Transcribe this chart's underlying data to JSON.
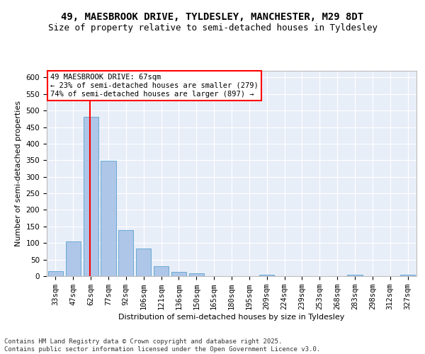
{
  "title_line1": "49, MAESBROOK DRIVE, TYLDESLEY, MANCHESTER, M29 8DT",
  "title_line2": "Size of property relative to semi-detached houses in Tyldesley",
  "xlabel": "Distribution of semi-detached houses by size in Tyldesley",
  "ylabel": "Number of semi-detached properties",
  "categories": [
    "33sqm",
    "47sqm",
    "62sqm",
    "77sqm",
    "92sqm",
    "106sqm",
    "121sqm",
    "136sqm",
    "150sqm",
    "165sqm",
    "180sqm",
    "195sqm",
    "209sqm",
    "224sqm",
    "239sqm",
    "253sqm",
    "268sqm",
    "283sqm",
    "298sqm",
    "312sqm",
    "327sqm"
  ],
  "values": [
    15,
    105,
    480,
    348,
    140,
    83,
    30,
    12,
    8,
    0,
    0,
    0,
    5,
    0,
    0,
    0,
    0,
    5,
    0,
    0,
    5
  ],
  "bar_color": "#aec6e8",
  "bar_edge_color": "#6aaad4",
  "vline_x_index": 2,
  "vline_color": "red",
  "annotation_text": "49 MAESBROOK DRIVE: 67sqm\n← 23% of semi-detached houses are smaller (279)\n74% of semi-detached houses are larger (897) →",
  "annotation_box_color": "white",
  "annotation_box_edgecolor": "red",
  "ylim": [
    0,
    620
  ],
  "yticks": [
    0,
    50,
    100,
    150,
    200,
    250,
    300,
    350,
    400,
    450,
    500,
    550,
    600
  ],
  "footer_text": "Contains HM Land Registry data © Crown copyright and database right 2025.\nContains public sector information licensed under the Open Government Licence v3.0.",
  "background_color": "#e8eef8",
  "grid_color": "white",
  "title_fontsize": 10,
  "subtitle_fontsize": 9,
  "axis_label_fontsize": 8,
  "tick_fontsize": 7.5,
  "annotation_fontsize": 7.5,
  "footer_fontsize": 6.5
}
